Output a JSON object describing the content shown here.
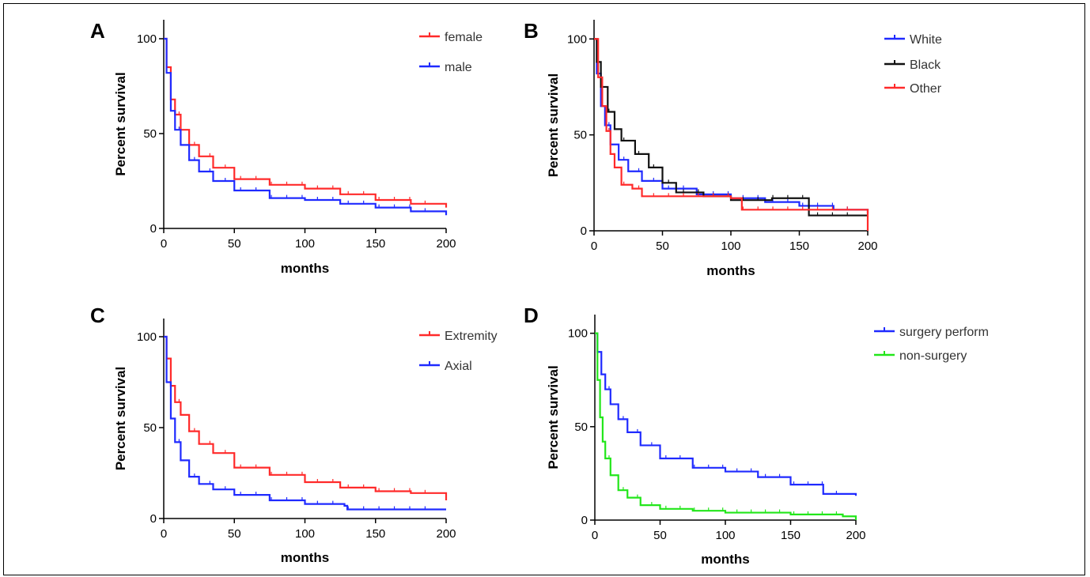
{
  "chart_data": [
    {
      "type": "line",
      "panel": "A",
      "ylabel": "Percent survival",
      "xlabel": "months",
      "xlim": [
        0,
        200
      ],
      "ylim": [
        0,
        100
      ],
      "xticks": [
        0,
        50,
        100,
        150,
        200
      ],
      "yticks": [
        0,
        50,
        100
      ],
      "legend_position": "top-right",
      "series": [
        {
          "name": "female",
          "color": "#ff2a2a",
          "x": [
            0,
            2,
            5,
            8,
            12,
            18,
            25,
            35,
            50,
            75,
            100,
            125,
            150,
            175,
            200
          ],
          "values": [
            100,
            85,
            68,
            60,
            52,
            44,
            38,
            32,
            26,
            23,
            21,
            18,
            15,
            13,
            11
          ]
        },
        {
          "name": "male",
          "color": "#1f2aff",
          "x": [
            0,
            2,
            5,
            8,
            12,
            18,
            25,
            35,
            50,
            75,
            100,
            125,
            150,
            175,
            200
          ],
          "values": [
            100,
            82,
            62,
            52,
            44,
            36,
            30,
            25,
            20,
            16,
            15,
            13,
            11,
            9,
            7
          ]
        }
      ]
    },
    {
      "type": "line",
      "panel": "B",
      "ylabel": "Percent survival",
      "xlabel": "months",
      "xlim": [
        0,
        200
      ],
      "ylim": [
        0,
        100
      ],
      "xticks": [
        0,
        50,
        100,
        150,
        200
      ],
      "yticks": [
        0,
        50,
        100
      ],
      "legend_position": "top-right",
      "series": [
        {
          "name": "White",
          "color": "#1f2aff",
          "x": [
            0,
            2,
            5,
            8,
            12,
            18,
            25,
            35,
            50,
            75,
            100,
            125,
            150,
            175,
            200
          ],
          "values": [
            100,
            82,
            65,
            55,
            45,
            37,
            31,
            26,
            22,
            19,
            17,
            15,
            13,
            11,
            9
          ]
        },
        {
          "name": "Black",
          "color": "#111111",
          "x": [
            0,
            2,
            5,
            10,
            15,
            20,
            30,
            40,
            50,
            60,
            80,
            100,
            130,
            155,
            157,
            200
          ],
          "values": [
            100,
            88,
            75,
            62,
            53,
            47,
            40,
            33,
            25,
            20,
            18,
            16,
            17,
            17,
            8,
            8
          ]
        },
        {
          "name": "Other",
          "color": "#ff2a2a",
          "x": [
            0,
            3,
            6,
            9,
            12,
            15,
            20,
            28,
            35,
            50,
            100,
            108,
            150,
            198,
            200
          ],
          "values": [
            100,
            80,
            65,
            52,
            40,
            33,
            24,
            22,
            18,
            18,
            17,
            11,
            11,
            11,
            0
          ]
        }
      ]
    },
    {
      "type": "line",
      "panel": "C",
      "ylabel": "Percent survival",
      "xlabel": "months",
      "xlim": [
        0,
        200
      ],
      "ylim": [
        0,
        100
      ],
      "xticks": [
        0,
        50,
        100,
        150,
        200
      ],
      "yticks": [
        0,
        50,
        100
      ],
      "legend_position": "top-right",
      "series": [
        {
          "name": "Extremity",
          "color": "#ff2a2a",
          "x": [
            0,
            2,
            5,
            8,
            12,
            18,
            25,
            35,
            50,
            75,
            100,
            125,
            150,
            175,
            195,
            200
          ],
          "values": [
            100,
            88,
            73,
            64,
            57,
            48,
            41,
            36,
            28,
            24,
            20,
            17,
            15,
            14,
            14,
            10
          ]
        },
        {
          "name": "Axial",
          "color": "#1f2aff",
          "x": [
            0,
            2,
            5,
            8,
            12,
            18,
            25,
            35,
            50,
            75,
            100,
            128,
            130,
            200
          ],
          "values": [
            100,
            75,
            55,
            42,
            32,
            23,
            19,
            16,
            13,
            10,
            8,
            7,
            5,
            5
          ]
        }
      ]
    },
    {
      "type": "line",
      "panel": "D",
      "ylabel": "Percent survival",
      "xlabel": "months",
      "xlim": [
        0,
        200
      ],
      "ylim": [
        0,
        100
      ],
      "xticks": [
        0,
        50,
        100,
        150,
        200
      ],
      "yticks": [
        0,
        50,
        100
      ],
      "legend_position": "top-right",
      "series": [
        {
          "name": "surgery perform",
          "color": "#1f2aff",
          "x": [
            0,
            2,
            5,
            8,
            12,
            18,
            25,
            35,
            50,
            75,
            100,
            125,
            150,
            175,
            200
          ],
          "values": [
            100,
            90,
            78,
            70,
            62,
            54,
            47,
            40,
            33,
            28,
            26,
            23,
            19,
            14,
            13
          ]
        },
        {
          "name": "non-surgery",
          "color": "#22e61a",
          "x": [
            0,
            2,
            4,
            6,
            8,
            12,
            18,
            25,
            35,
            50,
            75,
            100,
            150,
            190,
            200
          ],
          "values": [
            100,
            75,
            55,
            42,
            33,
            24,
            16,
            12,
            8,
            6,
            5,
            4,
            3,
            2,
            0
          ]
        }
      ]
    }
  ]
}
